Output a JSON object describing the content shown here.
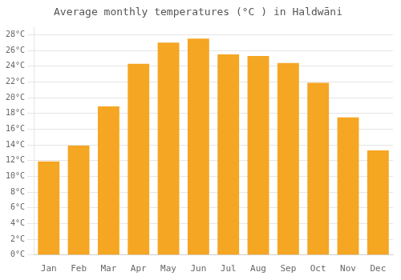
{
  "chart_data": {
    "type": "bar",
    "title": "Average monthly temperatures (°C ) in Haldwāni",
    "categories": [
      "Jan",
      "Feb",
      "Mar",
      "Apr",
      "May",
      "Jun",
      "Jul",
      "Aug",
      "Sep",
      "Oct",
      "Nov",
      "Dec"
    ],
    "values": [
      11.9,
      13.9,
      18.9,
      24.3,
      27.0,
      27.5,
      25.5,
      25.3,
      24.4,
      21.9,
      17.5,
      13.3
    ],
    "color": "#F5A623",
    "ylim": [
      0,
      29
    ],
    "yticks": [
      {
        "value": 0,
        "label": "0°C"
      },
      {
        "value": 2,
        "label": "2°C"
      },
      {
        "value": 4,
        "label": "4°C"
      },
      {
        "value": 6,
        "label": "6°C"
      },
      {
        "value": 8,
        "label": "8°C"
      },
      {
        "value": 10,
        "label": "10°C"
      },
      {
        "value": 12,
        "label": "12°C"
      },
      {
        "value": 14,
        "label": "14°C"
      },
      {
        "value": 16,
        "label": "16°C"
      },
      {
        "value": 18,
        "label": "18°C"
      },
      {
        "value": 20,
        "label": "20°C"
      },
      {
        "value": 22,
        "label": "22°C"
      },
      {
        "value": 24,
        "label": "24°C"
      },
      {
        "value": 26,
        "label": "26°C"
      },
      {
        "value": 28,
        "label": "28°C"
      }
    ],
    "grid": true
  }
}
